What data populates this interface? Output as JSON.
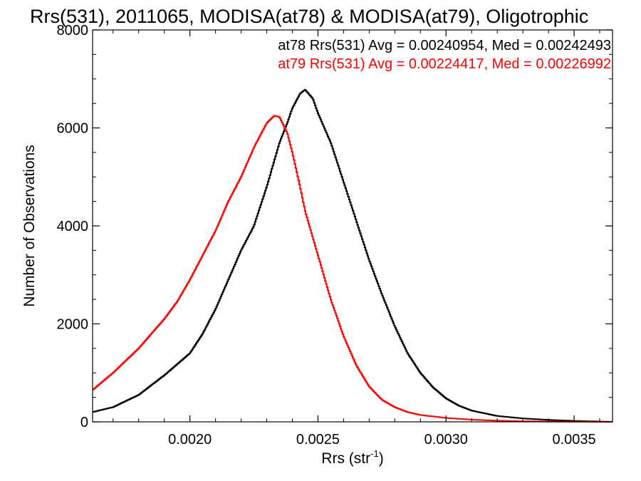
{
  "chart_data": {
    "type": "line",
    "title": "Rrs(531), 2011065, MODISA(at78) & MODISA(at79), Oligotrophic",
    "xlabel": "Rrs (str",
    "xlabel_sup": "-1",
    "xlabel_close": ")",
    "ylabel": "Number of Observations",
    "xlim": [
      0.00162,
      0.00365
    ],
    "ylim": [
      0,
      8000
    ],
    "x_ticks": [
      0.002,
      0.0025,
      0.003,
      0.0035
    ],
    "x_tick_labels": [
      "0.0020",
      "0.0025",
      "0.0030",
      "0.0035"
    ],
    "y_ticks": [
      0,
      2000,
      4000,
      6000,
      8000
    ],
    "y_tick_labels": [
      "0",
      "2000",
      "4000",
      "6000",
      "8000"
    ],
    "grid": false,
    "legend_placement": "top-right",
    "annotations": [
      {
        "text": "at78 Rrs(531) Avg = 0.00240954, Med = 0.00242493",
        "color": "#000000"
      },
      {
        "text": "at79 Rrs(531) Avg = 0.00224417, Med = 0.00226992",
        "color": "#ff0000"
      }
    ],
    "series": [
      {
        "color": "#000000",
        "x": [
          0.00162,
          0.0017,
          0.0018,
          0.0019,
          0.002,
          0.00205,
          0.0021,
          0.00215,
          0.0022,
          0.00225,
          0.0023,
          0.00235,
          0.00238,
          0.0024,
          0.00243,
          0.00245,
          0.00248,
          0.0025,
          0.00255,
          0.0026,
          0.00265,
          0.0027,
          0.00275,
          0.0028,
          0.00285,
          0.0029,
          0.00295,
          0.003,
          0.00305,
          0.0031,
          0.0032,
          0.0033,
          0.0034,
          0.0035,
          0.00365
        ],
        "y": [
          200,
          300,
          550,
          950,
          1400,
          1800,
          2300,
          2900,
          3500,
          4000,
          4800,
          5700,
          6100,
          6400,
          6700,
          6780,
          6600,
          6300,
          5700,
          4900,
          4100,
          3300,
          2600,
          1950,
          1400,
          1000,
          700,
          480,
          330,
          230,
          120,
          70,
          40,
          20,
          0
        ]
      },
      {
        "color": "#ff0000",
        "x": [
          0.00162,
          0.0017,
          0.0018,
          0.0019,
          0.00195,
          0.002,
          0.00205,
          0.0021,
          0.00215,
          0.0022,
          0.00225,
          0.0023,
          0.00233,
          0.00235,
          0.00238,
          0.0024,
          0.00243,
          0.00245,
          0.0025,
          0.00255,
          0.0026,
          0.00265,
          0.0027,
          0.00275,
          0.0028,
          0.00285,
          0.0029,
          0.003,
          0.0031,
          0.0032,
          0.0033,
          0.0034,
          0.00365
        ],
        "y": [
          650,
          1000,
          1500,
          2100,
          2450,
          2900,
          3400,
          3900,
          4500,
          5000,
          5600,
          6100,
          6250,
          6220,
          5900,
          5500,
          4800,
          4300,
          3400,
          2500,
          1750,
          1150,
          720,
          450,
          300,
          200,
          140,
          80,
          45,
          25,
          12,
          6,
          0
        ]
      }
    ]
  }
}
